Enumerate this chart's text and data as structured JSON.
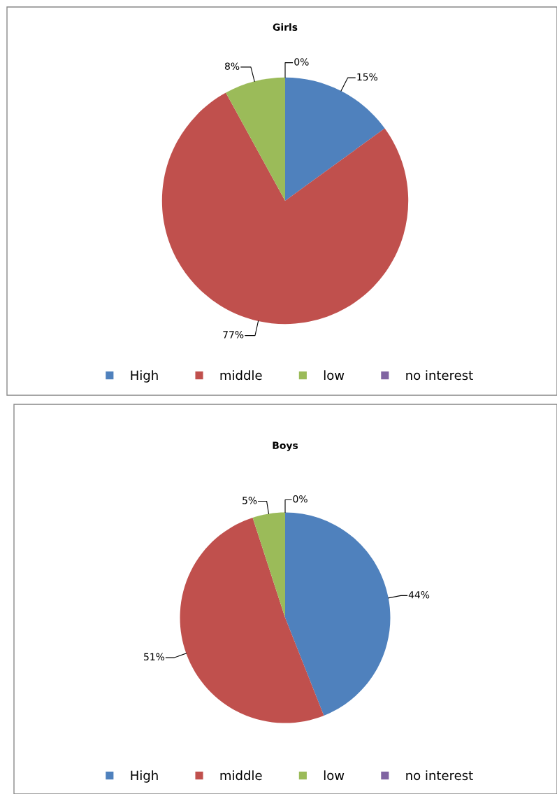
{
  "chart_data": [
    {
      "type": "pie",
      "title": "Girls",
      "categories": [
        "High",
        "middle",
        "low",
        "no interest"
      ],
      "values": [
        15,
        77,
        8,
        0
      ],
      "value_labels": [
        "15%",
        "77%",
        "8%",
        "0%"
      ],
      "colors": [
        "#4f81bd",
        "#c0504d",
        "#9bbb59",
        "#8064a2"
      ],
      "legend": "bottom"
    },
    {
      "type": "pie",
      "title": "Boys",
      "categories": [
        "High",
        "middle",
        "low",
        "no interest"
      ],
      "values": [
        44,
        51,
        5,
        0
      ],
      "value_labels": [
        "44%",
        "51%",
        "5%",
        "0%"
      ],
      "colors": [
        "#4f81bd",
        "#c0504d",
        "#9bbb59",
        "#8064a2"
      ],
      "legend": "bottom"
    }
  ]
}
